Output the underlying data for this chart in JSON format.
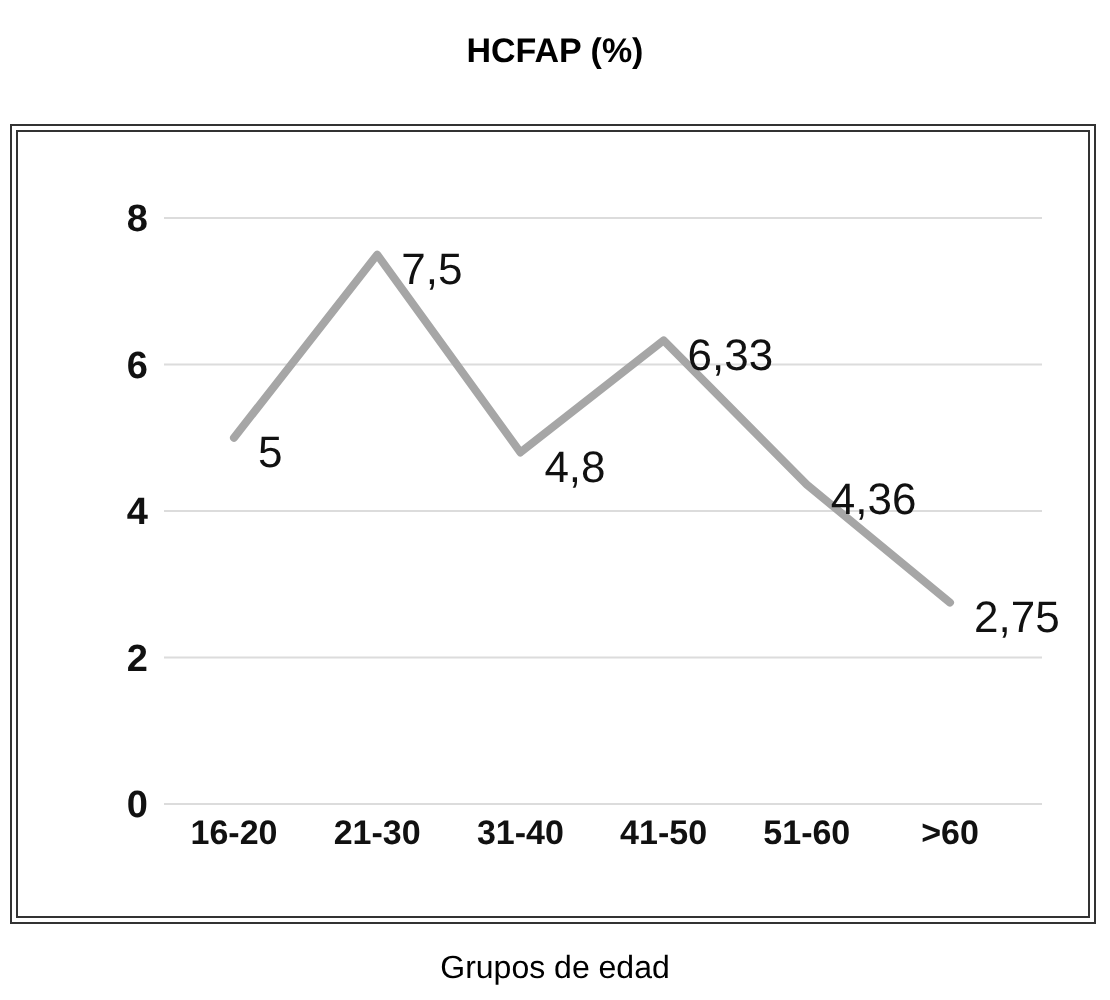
{
  "chart_data": {
    "type": "line",
    "title": "HCFAP (%)",
    "xlabel": "Grupos de edad",
    "categories": [
      "16-20",
      "21-30",
      "31-40",
      "41-50",
      "51-60",
      ">60"
    ],
    "series": [
      {
        "color": "#a6a6a6",
        "values": [
          5,
          7.5,
          4.8,
          6.33,
          4.36,
          2.75
        ],
        "value_labels": [
          "5",
          "7,5",
          "4,8",
          "6,33",
          "4,36",
          "2,75"
        ]
      }
    ],
    "ylim": [
      0,
      8
    ],
    "yticks": [
      0,
      2,
      4,
      6,
      8
    ],
    "grid": "y",
    "legend": false,
    "marker": "none",
    "line_style": "solid"
  }
}
